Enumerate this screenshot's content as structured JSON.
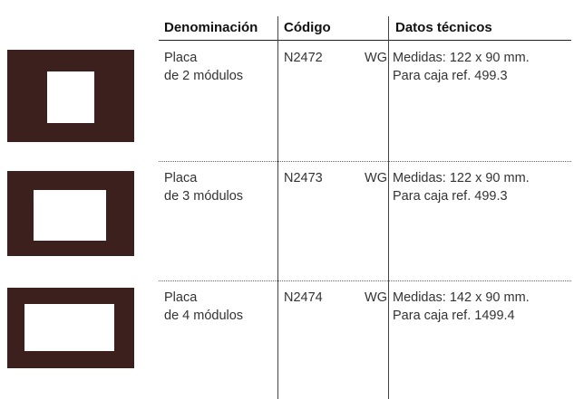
{
  "table": {
    "header": [
      "Denominación",
      "Código",
      "Datos técnicos"
    ],
    "rows": [
      {
        "name": [
          "Placa",
          "de 2 módulos"
        ],
        "code": "N2472",
        "finish": "WG",
        "specs": [
          "Medidas: 122 x 90 mm.",
          "Para caja ref. 499.3"
        ]
      },
      {
        "name": [
          "Placa",
          "de 3 módulos"
        ],
        "code": "N2473",
        "finish": "WG",
        "specs": [
          "Medidas: 122 x 90 mm.",
          "Para caja ref. 499.3"
        ]
      },
      {
        "name": [
          "Placa",
          "de 4 módulos"
        ],
        "code": "N2474",
        "finish": "WG",
        "specs": [
          "Medidas: 142 x 90 mm.",
          "Para caja ref. 1499.4"
        ]
      }
    ]
  }
}
